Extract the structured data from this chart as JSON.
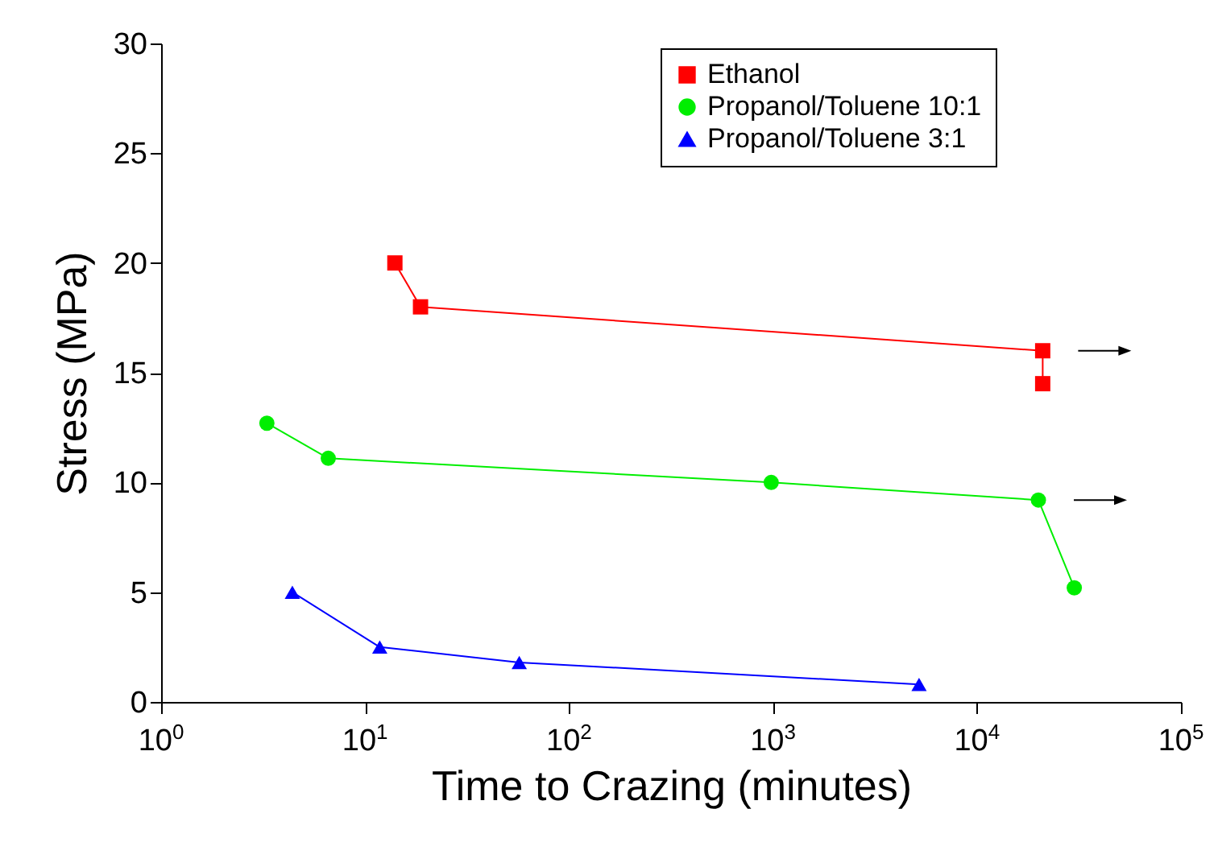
{
  "chart_data": {
    "type": "line",
    "xlabel": "Time to Crazing (minutes)",
    "ylabel": "Stress (MPa)",
    "log": "x",
    "xlim": [
      1,
      100000
    ],
    "ylim": [
      0,
      30
    ],
    "xticks": [
      {
        "value": 1,
        "label": "10$^{0}$"
      },
      {
        "value": 10,
        "label": "10$^{1}$"
      },
      {
        "value": 100,
        "label": "10$^{2}$"
      },
      {
        "value": 1000,
        "label": "10$^{3}$"
      },
      {
        "value": 10000,
        "label": "10$^{4}$"
      },
      {
        "value": 100000,
        "label": "10$^{5}$"
      }
    ],
    "yticks": [
      0,
      5,
      10,
      15,
      20,
      25,
      30
    ],
    "grid": false,
    "legend": "top right",
    "line_style": "solid",
    "series": [
      {
        "name": "Ethanol",
        "color": "#ff0000",
        "marker": "square",
        "x": [
          14,
          18.7,
          21000,
          21000
        ],
        "values": [
          20,
          18,
          16,
          14.5
        ]
      },
      {
        "name": "Propanol/Toluene 10:1",
        "color": "#00ee00",
        "marker": "circle",
        "x": [
          3.3,
          6.6,
          980,
          20000,
          30000
        ],
        "values": [
          12.7,
          11.1,
          10,
          9.2,
          5.2
        ]
      },
      {
        "name": "Propanol/Toluene  3:1",
        "color": "#0000ff",
        "marker": "triangle",
        "x": [
          4.4,
          11.8,
          57,
          5200
        ],
        "values": [
          5,
          2.5,
          1.8,
          0.8
        ]
      }
    ]
  }
}
